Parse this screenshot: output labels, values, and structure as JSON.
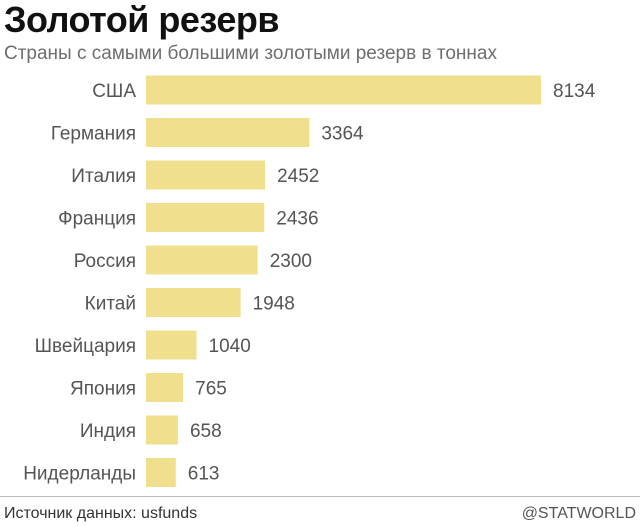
{
  "header": {
    "title": "Золотой резерв",
    "subtitle": "Страны с самыми большими золотыми резерв в тоннах"
  },
  "chart_data": {
    "type": "bar",
    "orientation": "horizontal",
    "title": "Золотой резерв",
    "subtitle": "Страны с самыми большими золотыми резерв в тоннах",
    "categories": [
      "США",
      "Германия",
      "Италия",
      "Франция",
      "Россия",
      "Китай",
      "Швейцария",
      "Япония",
      "Индия",
      "Нидерланды"
    ],
    "values": [
      8134,
      3364,
      2452,
      2436,
      2300,
      1948,
      1040,
      765,
      658,
      613
    ],
    "xlim": [
      0,
      8134
    ],
    "grid": false,
    "bar_color": "#f0df8c",
    "data_labels": true
  },
  "footer": {
    "source": "Источник данных: usfunds",
    "brand": "@STATWORLD"
  }
}
